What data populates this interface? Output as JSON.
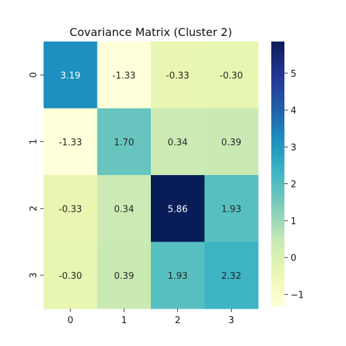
{
  "chart_data": {
    "type": "heatmap",
    "title": "Covariance Matrix (Cluster 2)",
    "xlabel": "",
    "ylabel": "",
    "x_categories": [
      "0",
      "1",
      "2",
      "3"
    ],
    "y_categories": [
      "0",
      "1",
      "2",
      "3"
    ],
    "matrix": [
      [
        3.19,
        -1.33,
        -0.33,
        -0.3
      ],
      [
        -1.33,
        1.7,
        0.34,
        0.39
      ],
      [
        -0.33,
        0.34,
        5.86,
        1.93
      ],
      [
        -0.3,
        0.39,
        1.93,
        2.32
      ]
    ],
    "value_format": "0.00",
    "colormap": "YlGnBu",
    "vmin": -1.33,
    "vmax": 5.86,
    "colorbar": {
      "ticks": [
        -1,
        0,
        1,
        2,
        3,
        4,
        5
      ],
      "position": "right"
    },
    "grid": false
  }
}
